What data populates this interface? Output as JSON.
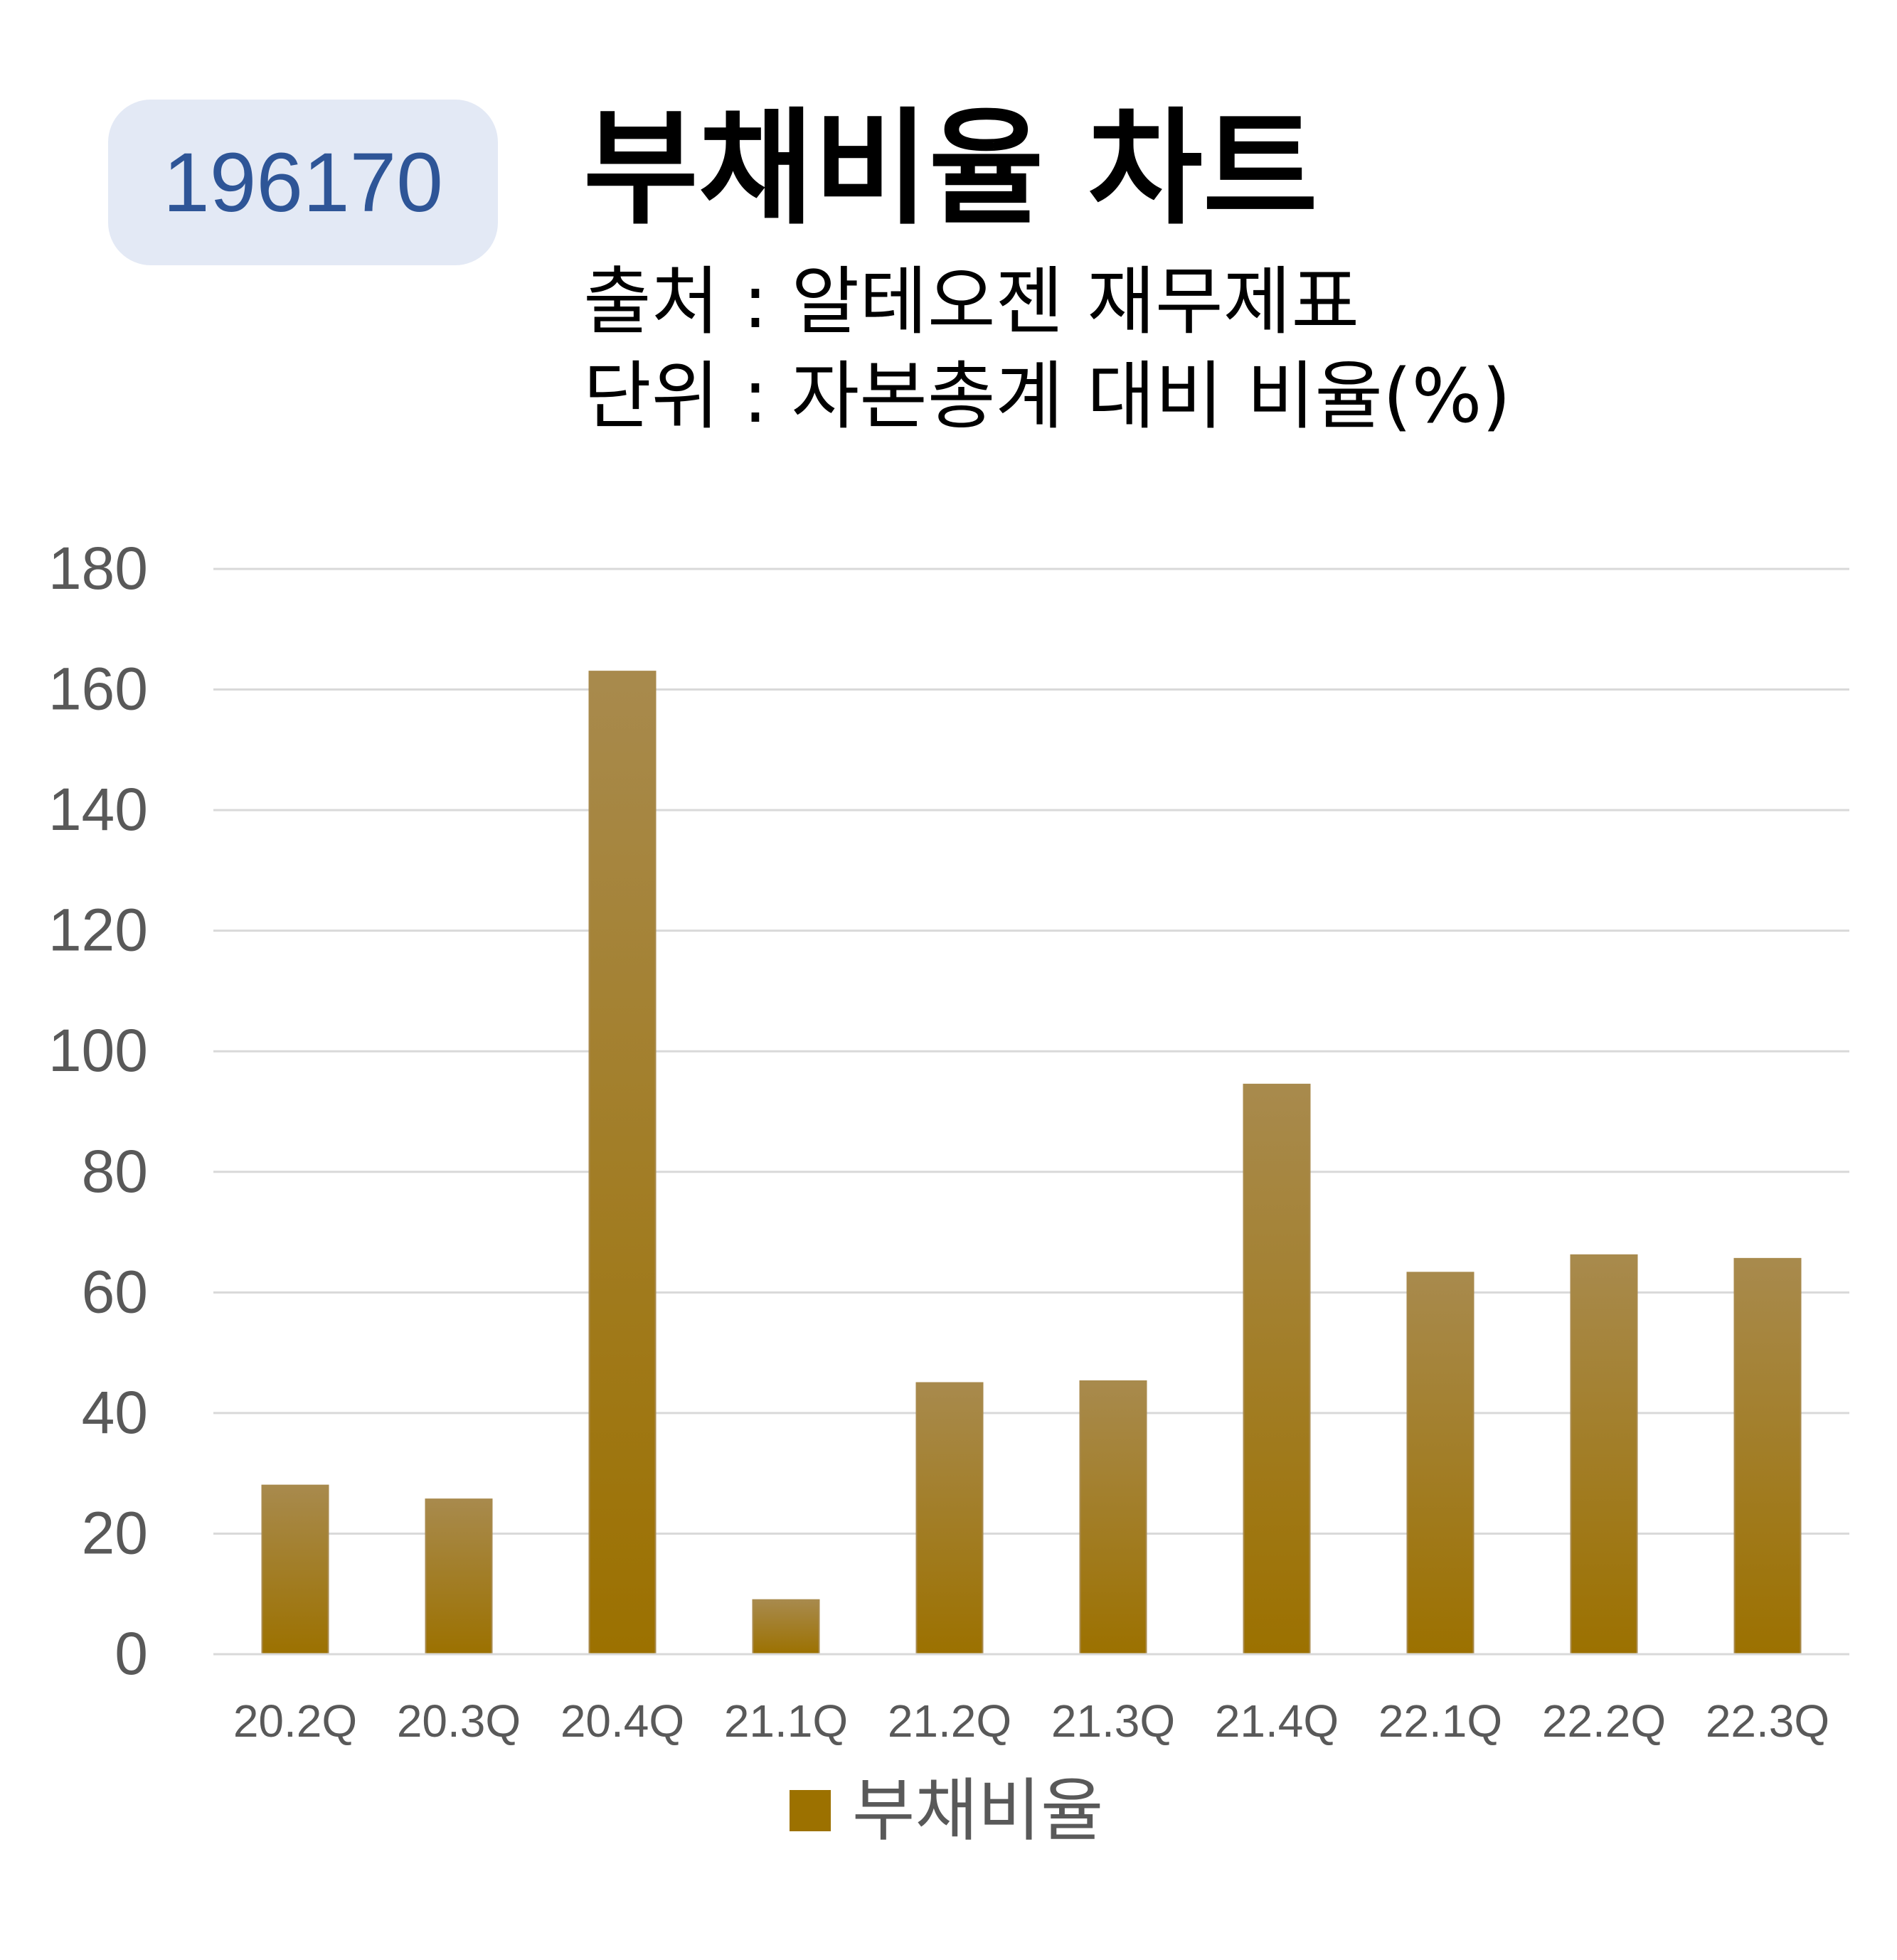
{
  "badge": {
    "code": "196170"
  },
  "header": {
    "title": "부채비율 차트",
    "source": "출처 : 알테오젠 재무제표",
    "unit": "단위 : 자본총계 대비 비율(%)"
  },
  "colors": {
    "bar_top": "#a88a4d",
    "bar_bottom": "#9c7100",
    "grid": "#d9d9d9",
    "tick_text": "#595959",
    "badge_bg": "#e3e9f5",
    "badge_text": "#2e5597"
  },
  "chart_data": {
    "type": "bar",
    "categories": [
      "20.2Q",
      "20.3Q",
      "20.4Q",
      "21.1Q",
      "21.2Q",
      "21.3Q",
      "21.4Q",
      "22.1Q",
      "22.2Q",
      "22.3Q"
    ],
    "series": [
      {
        "name": "부채비율",
        "values": [
          28,
          25.7,
          163,
          9,
          45,
          45.3,
          94.5,
          63.3,
          66.2,
          65.6
        ]
      }
    ],
    "ylim": [
      0,
      180
    ],
    "yticks": [
      "0",
      "20",
      "40",
      "60",
      "80",
      "100",
      "120",
      "140",
      "160",
      "180"
    ],
    "grid": true,
    "legend_position": "bottom-center"
  }
}
